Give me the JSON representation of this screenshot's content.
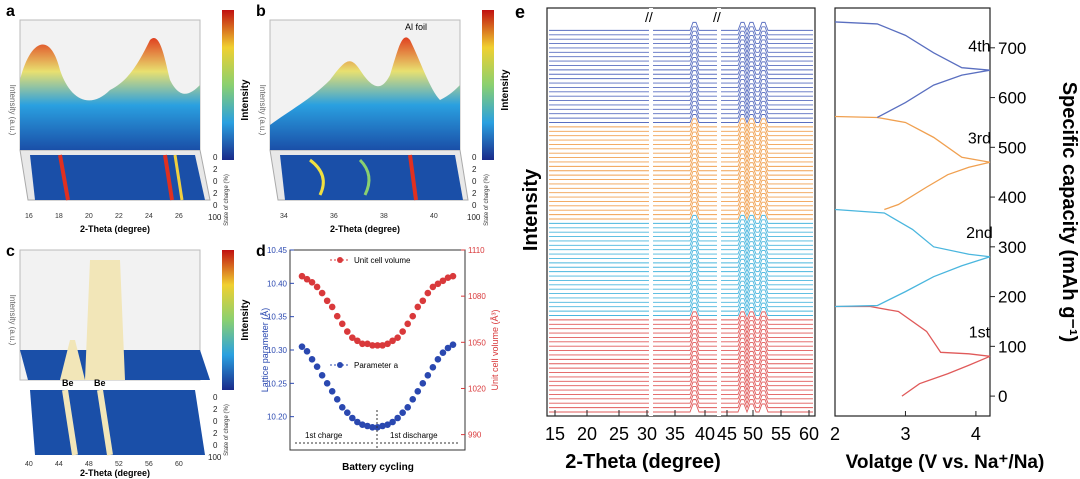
{
  "panels": {
    "a": {
      "letter": "a",
      "xlabel": "2-Theta (degree)",
      "zlabel": "Intensity (a.u.)",
      "colorbar_label": "Intensity",
      "soc_label": "State of charge (%)",
      "xticks": [
        "16",
        "18",
        "20",
        "22",
        "24",
        "26"
      ],
      "soc_ticks": [
        "0",
        "2",
        "0",
        "2",
        "0",
        "100"
      ]
    },
    "b": {
      "letter": "b",
      "xlabel": "2-Theta (degree)",
      "zlabel": "Intensity (a.u.)",
      "colorbar_label": "Intensity",
      "soc_label": "State of charge (%)",
      "annotation": "Al foil",
      "xticks": [
        "34",
        "36",
        "38",
        "40"
      ],
      "soc_ticks": [
        "0",
        "2",
        "0",
        "2",
        "0",
        "100"
      ]
    },
    "c": {
      "letter": "c",
      "xlabel": "2-Theta (degree)",
      "zlabel": "Intensity (a.u.)",
      "colorbar_label": "Intensity",
      "soc_label": "State of charge (%)",
      "annotations": [
        "Be",
        "Be"
      ],
      "xticks": [
        "40",
        "44",
        "48",
        "52",
        "56",
        "60"
      ],
      "soc_ticks": [
        "0",
        "2",
        "0",
        "2",
        "0",
        "100"
      ]
    },
    "d": {
      "letter": "d"
    },
    "e": {
      "letter": "e"
    }
  },
  "colors": {
    "red": "#e05a5a",
    "orange": "#f0a050",
    "cyan": "#4ab6de",
    "blue": "#5a6fc0",
    "dot_red": "#d9393b",
    "dot_blue": "#2a48b0"
  },
  "chart_data": [
    {
      "id": "d",
      "type": "scatter",
      "xlabel": "Battery cycling",
      "ylabel": "Lattice parameter (Å)",
      "y2label": "Unit cell volume (Å³)",
      "ylim": [
        10.15,
        10.45
      ],
      "y2lim": [
        980,
        1110
      ],
      "yticks": [
        10.2,
        10.25,
        10.3,
        10.35,
        10.4,
        10.45
      ],
      "y2ticks": [
        990,
        1020,
        1050,
        1080,
        1110
      ],
      "phase_labels": [
        "1st charge",
        "1st discharge"
      ],
      "series": [
        {
          "name": "Unit cell volume",
          "axis": "right",
          "values": [
            1093,
            1091,
            1089,
            1086,
            1082,
            1077,
            1073,
            1067,
            1062,
            1057,
            1053,
            1051,
            1049,
            1049,
            1048,
            1048,
            1048,
            1049,
            1051,
            1053,
            1057,
            1062,
            1067,
            1073,
            1077,
            1082,
            1086,
            1088,
            1090,
            1092,
            1093
          ]
        },
        {
          "name": "Parameter a",
          "axis": "left",
          "values": [
            10.305,
            10.298,
            10.286,
            10.275,
            10.262,
            10.25,
            10.238,
            10.226,
            10.214,
            10.206,
            10.198,
            10.192,
            10.188,
            10.186,
            10.184,
            10.184,
            10.186,
            10.188,
            10.192,
            10.198,
            10.206,
            10.214,
            10.226,
            10.238,
            10.25,
            10.262,
            10.274,
            10.286,
            10.296,
            10.303,
            10.308
          ]
        }
      ]
    },
    {
      "id": "e-xrd",
      "type": "line",
      "xlabel": "2-Theta (degree)",
      "ylabel": "Intensity",
      "xticks": [
        "15",
        "20",
        "25",
        "30",
        "35",
        "40",
        "45",
        "50",
        "55",
        "60"
      ],
      "groups": [
        {
          "color": "red"
        },
        {
          "color": "cyan"
        },
        {
          "color": "orange"
        },
        {
          "color": "blue"
        }
      ]
    },
    {
      "id": "e-profile",
      "type": "line",
      "xlabel": "Volatge (V vs. Na⁺/Na)",
      "ylabel": "Specific capacity (mAh g⁻¹)",
      "xlim": [
        2,
        4.2
      ],
      "ylim": [
        -40,
        780
      ],
      "xticks": [
        2,
        3,
        4
      ],
      "yticks": [
        0,
        100,
        200,
        300,
        400,
        500,
        600,
        700
      ],
      "series": [
        {
          "name": "1st",
          "color": "red",
          "charge": [
            [
              2.95,
              0
            ],
            [
              3.2,
              25
            ],
            [
              3.6,
              45
            ],
            [
              3.9,
              62
            ],
            [
              4.2,
              80
            ]
          ],
          "discharge": [
            [
              4.2,
              80
            ],
            [
              3.9,
              85
            ],
            [
              3.5,
              88
            ],
            [
              3.3,
              130
            ],
            [
              2.9,
              170
            ],
            [
              2.5,
              180
            ],
            [
              2.0,
              180
            ]
          ]
        },
        {
          "name": "2nd",
          "color": "cyan",
          "charge": [
            [
              2.0,
              180
            ],
            [
              2.6,
              182
            ],
            [
              3.0,
              210
            ],
            [
              3.4,
              240
            ],
            [
              3.8,
              262
            ],
            [
              4.2,
              280
            ]
          ],
          "discharge": [
            [
              4.2,
              280
            ],
            [
              3.9,
              285
            ],
            [
              3.4,
              300
            ],
            [
              3.1,
              335
            ],
            [
              2.7,
              368
            ],
            [
              2.0,
              375
            ]
          ]
        },
        {
          "name": "3rd",
          "color": "orange",
          "charge": [
            [
              2.7,
              375
            ],
            [
              2.9,
              385
            ],
            [
              3.3,
              420
            ],
            [
              3.6,
              445
            ],
            [
              3.9,
              460
            ],
            [
              4.2,
              470
            ]
          ],
          "discharge": [
            [
              4.2,
              470
            ],
            [
              3.8,
              480
            ],
            [
              3.4,
              520
            ],
            [
              3.0,
              550
            ],
            [
              2.6,
              560
            ],
            [
              2.0,
              562
            ]
          ]
        },
        {
          "name": "4th",
          "color": "blue",
          "charge": [
            [
              2.6,
              560
            ],
            [
              3.0,
              590
            ],
            [
              3.4,
              625
            ],
            [
              3.8,
              645
            ],
            [
              4.2,
              655
            ]
          ],
          "discharge": [
            [
              4.2,
              655
            ],
            [
              3.8,
              660
            ],
            [
              3.4,
              690
            ],
            [
              3.0,
              725
            ],
            [
              2.6,
              748
            ],
            [
              2.0,
              752
            ]
          ]
        }
      ]
    }
  ]
}
